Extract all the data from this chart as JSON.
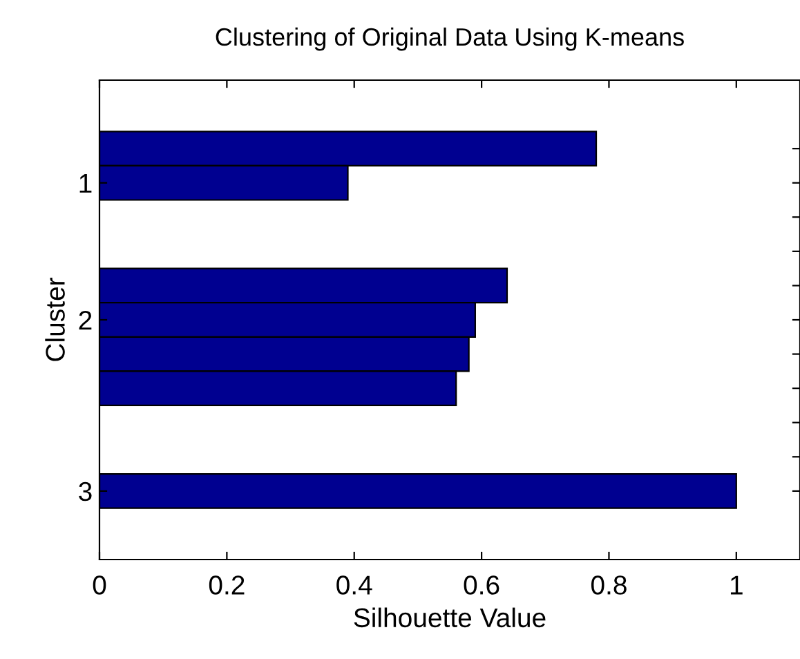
{
  "chart_data": {
    "type": "bar",
    "orientation": "horizontal",
    "title": "Clustering of Original Data Using K-means",
    "xlabel": "Silhouette Value",
    "ylabel": "Cluster",
    "categories": [
      null,
      "1",
      null,
      null,
      null,
      "2",
      null,
      null,
      null,
      null,
      "3"
    ],
    "values": [
      0.78,
      0.39,
      null,
      null,
      0.64,
      0.59,
      0.58,
      0.56,
      null,
      null,
      1.0
    ],
    "color": "#000090",
    "xlim": [
      0,
      1.1
    ],
    "xticks": [
      0,
      0.2,
      0.4,
      0.6,
      0.8,
      1
    ],
    "grid": false
  }
}
